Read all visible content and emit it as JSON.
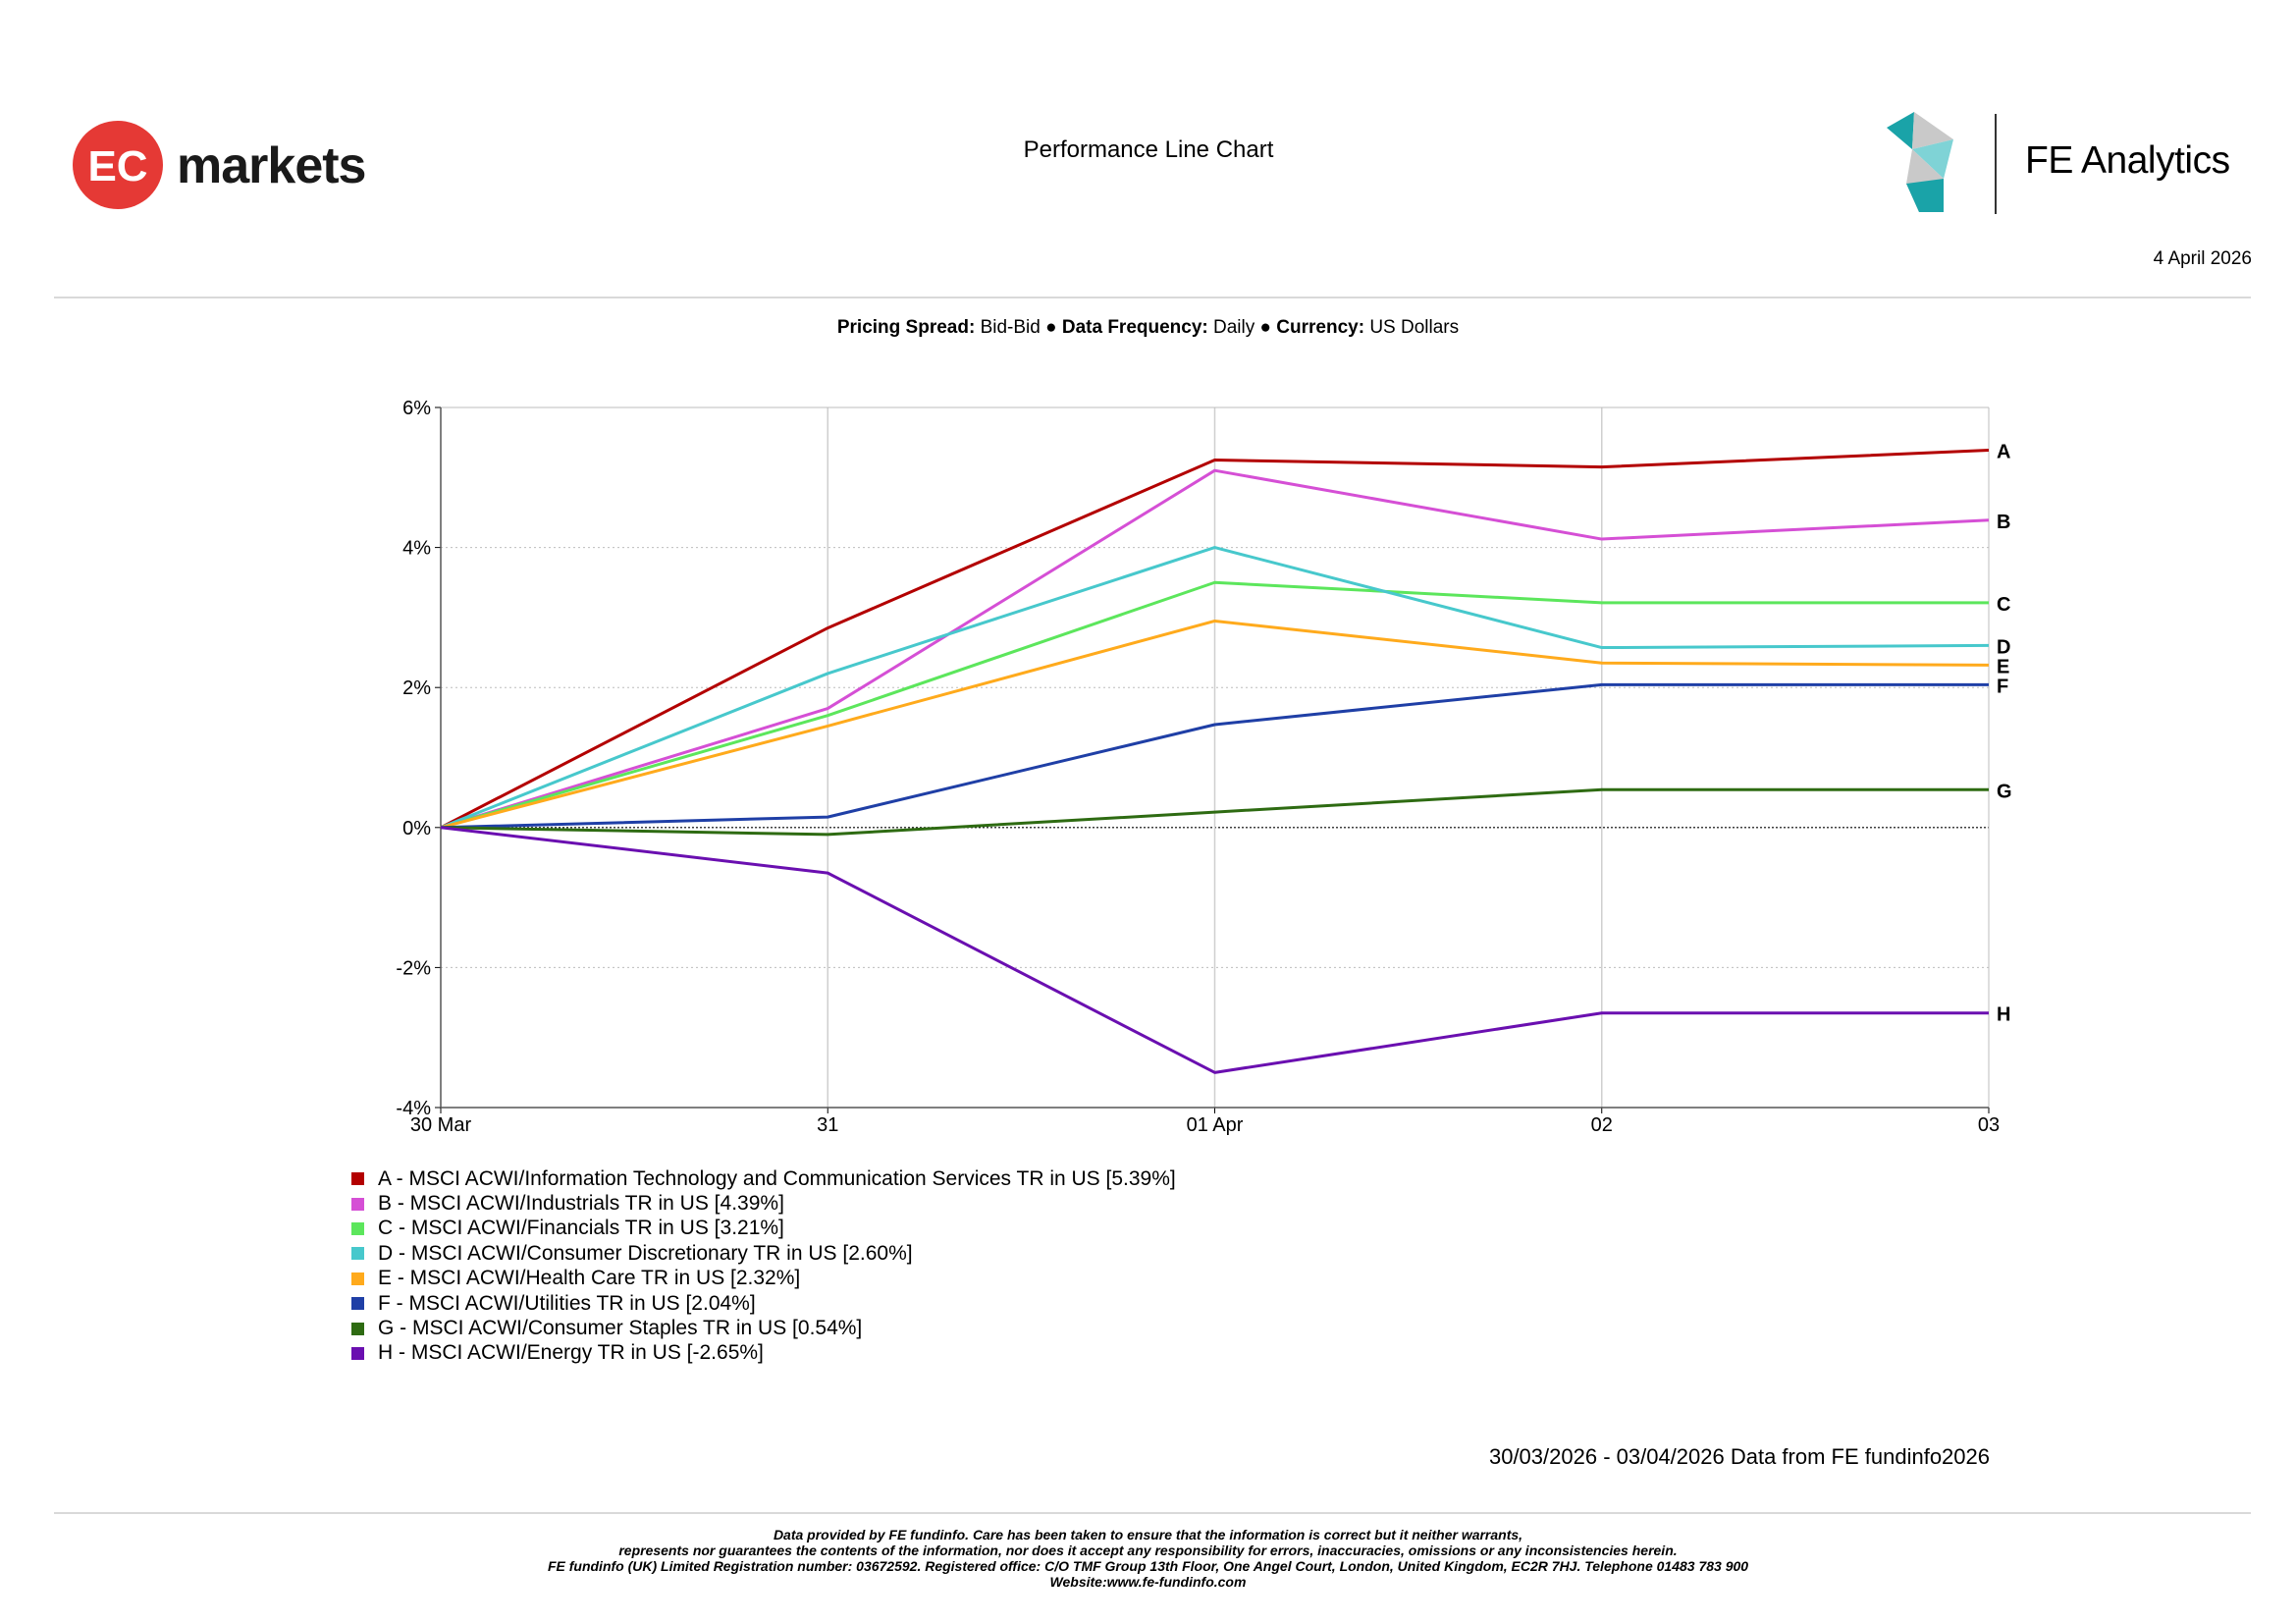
{
  "header": {
    "brand_left": "markets",
    "brand_left_badge": "EC",
    "title": "Performance Line Chart",
    "brand_right": "FE Analytics",
    "date": "4 April 2026"
  },
  "meta": {
    "pricing_label": "Pricing Spread:",
    "pricing_value": "Bid-Bid",
    "frequency_label": "Data Frequency:",
    "frequency_value": "Daily",
    "currency_label": "Currency:",
    "currency_value": "US Dollars",
    "separator": "●"
  },
  "chart_data": {
    "type": "line",
    "x": [
      "30 Mar",
      "31",
      "01 Apr",
      "02",
      "03"
    ],
    "ylim": [
      -4,
      6
    ],
    "yticks": [
      6,
      4,
      2,
      0,
      -2,
      -4
    ],
    "ytick_labels": [
      "6%",
      "4%",
      "2%",
      "0%",
      "-2%",
      "-4%"
    ],
    "grid": true,
    "series": [
      {
        "id": "A",
        "name": "A - MSCI ACWI/Information Technology and Communication Services TR in US [5.39%]",
        "color": "#b30000",
        "values": [
          0,
          2.85,
          5.25,
          5.15,
          5.39
        ]
      },
      {
        "id": "B",
        "name": "B - MSCI ACWI/Industrials TR in US [4.39%]",
        "color": "#d54fd5",
        "values": [
          0,
          1.7,
          5.1,
          4.12,
          4.39
        ]
      },
      {
        "id": "C",
        "name": "C - MSCI ACWI/Financials TR in US [3.21%]",
        "color": "#5ce65c",
        "values": [
          0,
          1.6,
          3.5,
          3.21,
          3.21
        ]
      },
      {
        "id": "D",
        "name": "D - MSCI ACWI/Consumer Discretionary TR in US [2.60%]",
        "color": "#47c8cc",
        "values": [
          0,
          2.2,
          4.0,
          2.57,
          2.6
        ]
      },
      {
        "id": "E",
        "name": "E - MSCI ACWI/Health Care TR in US [2.32%]",
        "color": "#ffaa1c",
        "values": [
          0,
          1.45,
          2.95,
          2.35,
          2.32
        ]
      },
      {
        "id": "F",
        "name": "F - MSCI ACWI/Utilities TR in US [2.04%]",
        "color": "#1f3fa6",
        "values": [
          0,
          0.15,
          1.47,
          2.04,
          2.04
        ]
      },
      {
        "id": "G",
        "name": "G - MSCI ACWI/Consumer Staples TR in US [0.54%]",
        "color": "#2e6b12",
        "values": [
          0,
          -0.1,
          0.22,
          0.54,
          0.54
        ]
      },
      {
        "id": "H",
        "name": "H - MSCI ACWI/Energy TR in US [-2.65%]",
        "color": "#6a0fb0",
        "values": [
          0,
          -0.65,
          -3.5,
          -2.65,
          -2.65
        ]
      }
    ]
  },
  "footer": {
    "period_note": "30/03/2026 - 03/04/2026 Data from FE fundinfo2026",
    "disclaimer_lines": [
      "Data provided by FE fundinfo. Care has been taken to ensure that the information is correct but it neither warrants,",
      "represents nor guarantees the contents of the information, nor does it accept any responsibility for errors, inaccuracies, omissions or any inconsistencies herein.",
      "FE fundinfo (UK) Limited Registration number: 03672592. Registered office: C/O TMF Group 13th Floor, One Angel Court, London, United Kingdom, EC2R 7HJ. Telephone 01483 783 900",
      "Website:www.fe-fundinfo.com"
    ]
  }
}
